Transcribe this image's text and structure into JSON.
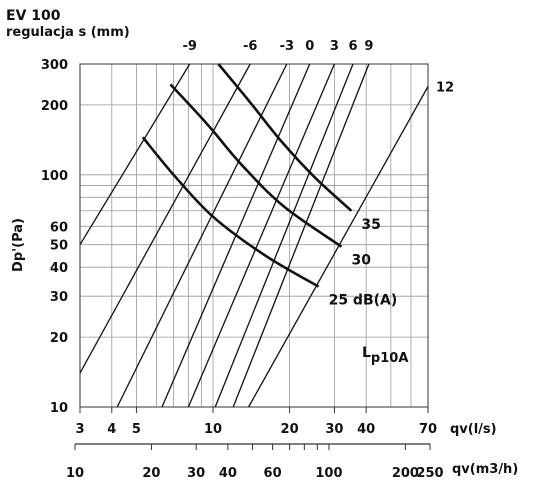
{
  "chart_data": {
    "type": "line",
    "title": "EV 100",
    "subtitle": "regulacja s (mm)",
    "ylabel": "Dp'(Pa)",
    "xlabel": "qv(l/s)",
    "x2label": "qv(m3/h)",
    "xscale": "log",
    "yscale": "log",
    "xlim": [
      3,
      70
    ],
    "ylim": [
      10,
      300
    ],
    "grid": true,
    "x_ticks": [
      3,
      4,
      5,
      10,
      20,
      30,
      40,
      70
    ],
    "x_tick_labels": [
      "3",
      "4",
      "5",
      "10",
      "20",
      "30",
      "40",
      "70"
    ],
    "y_ticks": [
      10,
      20,
      30,
      40,
      50,
      60,
      100,
      200,
      300
    ],
    "y_tick_labels": [
      "10",
      "20",
      "30",
      "40",
      "50",
      "60",
      "100",
      "200",
      "300"
    ],
    "x2_ticks": [
      10,
      20,
      30,
      40,
      60,
      100,
      200,
      250
    ],
    "x2_tick_labels": [
      "10",
      "20",
      "30",
      "40",
      "60",
      "100",
      "200",
      "250"
    ],
    "setting_label_values": [
      -9,
      -6,
      -3,
      0,
      3,
      6,
      9,
      12
    ],
    "setting_labels": [
      "-9",
      "-6",
      "-3",
      "0",
      "3",
      "6",
      "9",
      "12"
    ],
    "setting_lines": [
      {
        "s": "-9",
        "points": [
          [
            3.0,
            50
          ],
          [
            8.1,
            300
          ]
        ]
      },
      {
        "s": "-6",
        "points": [
          [
            3.0,
            14
          ],
          [
            14.0,
            300
          ]
        ]
      },
      {
        "s": "-3",
        "points": [
          [
            4.2,
            10
          ],
          [
            19.5,
            300
          ]
        ]
      },
      {
        "s": "0",
        "points": [
          [
            6.3,
            10
          ],
          [
            24.0,
            300
          ]
        ]
      },
      {
        "s": "3",
        "points": [
          [
            8.0,
            10
          ],
          [
            30.0,
            300
          ]
        ]
      },
      {
        "s": "6",
        "points": [
          [
            10.2,
            10
          ],
          [
            35.5,
            300
          ]
        ]
      },
      {
        "s": "9",
        "points": [
          [
            12.0,
            10
          ],
          [
            41.0,
            300
          ]
        ]
      },
      {
        "s": "12",
        "points": [
          [
            13.8,
            10
          ],
          [
            70.0,
            240
          ]
        ]
      }
    ],
    "noise_curves": [
      {
        "name": "35",
        "points": [
          [
            10.5,
            300
          ],
          [
            14.0,
            205
          ],
          [
            18.5,
            140
          ],
          [
            25.0,
            98
          ],
          [
            35.0,
            70
          ]
        ]
      },
      {
        "name": "30",
        "points": [
          [
            6.8,
            245
          ],
          [
            9.5,
            165
          ],
          [
            13.0,
            110
          ],
          [
            19.0,
            73
          ],
          [
            32.0,
            49
          ]
        ]
      },
      {
        "name": "25 dB(A)",
        "points": [
          [
            5.3,
            145
          ],
          [
            7.0,
            100
          ],
          [
            10.0,
            66
          ],
          [
            16.0,
            45
          ],
          [
            26.0,
            33
          ]
        ]
      }
    ],
    "curve_labels": [
      "35",
      "30",
      "25 dB(A)"
    ],
    "lp_label": "L",
    "lp_subscript": "p10A"
  }
}
